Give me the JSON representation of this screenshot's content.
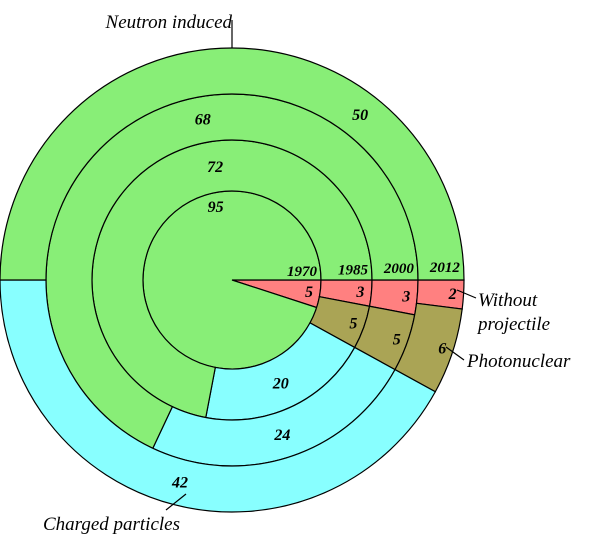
{
  "chart_data": {
    "type": "pie",
    "subtype": "nested-rings",
    "title": "",
    "rings": [
      "1970",
      "1985",
      "2000",
      "2012"
    ],
    "categories": [
      "Neutron induced",
      "Without projectile",
      "Photonuclear",
      "Charged particles"
    ],
    "category_labels": {
      "Neutron induced": "Neutron induced",
      "Without projectile": [
        "Without",
        "projectile"
      ],
      "Photonuclear": "Photonuclear",
      "Charged particles": "Charged particles"
    },
    "colors": {
      "Neutron induced": "#88ee77",
      "Without projectile": "#ff8080",
      "Photonuclear": "#aaa455",
      "Charged particles": "#88ffff"
    },
    "series": [
      {
        "ring": "1970",
        "values": {
          "Neutron induced": 95,
          "Without projectile": 5,
          "Photonuclear": 0,
          "Charged particles": 0
        }
      },
      {
        "ring": "1985",
        "values": {
          "Neutron induced": 72,
          "Without projectile": 3,
          "Photonuclear": 5,
          "Charged particles": 20
        }
      },
      {
        "ring": "2000",
        "values": {
          "Neutron induced": 68,
          "Without projectile": 3,
          "Photonuclear": 5,
          "Charged particles": 24
        }
      },
      {
        "ring": "2012",
        "values": {
          "Neutron induced": 50,
          "Without projectile": 2,
          "Photonuclear": 6,
          "Charged particles": 42
        }
      }
    ],
    "units": "percent"
  }
}
